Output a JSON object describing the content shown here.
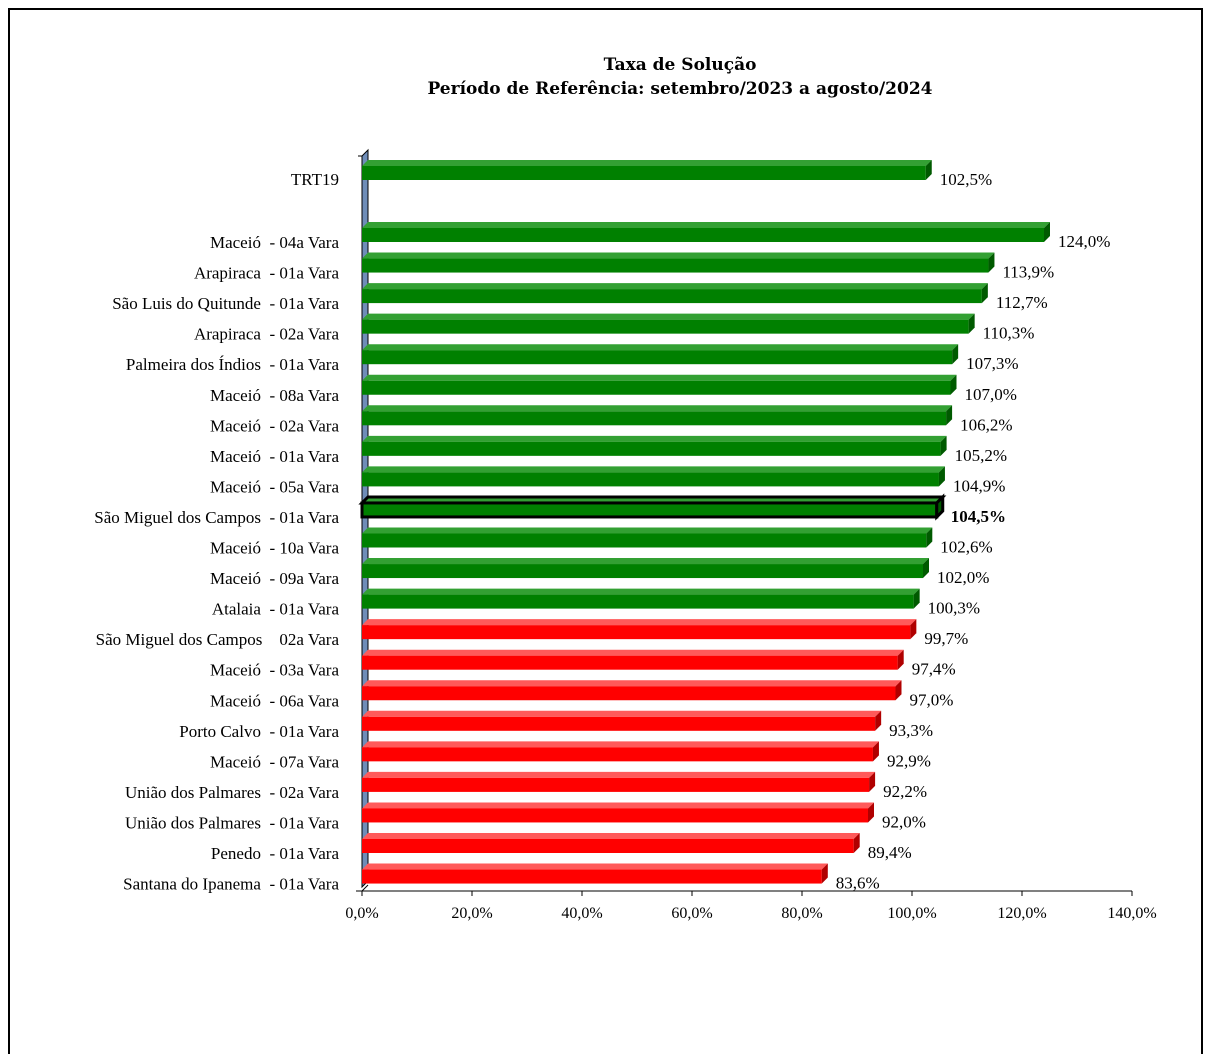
{
  "chart_data": {
    "type": "bar",
    "orientation": "horizontal",
    "title": "Taxa de Solução",
    "subtitle": "Período de Referência: setembro/2023 a agosto/2024",
    "xlim": [
      0,
      140
    ],
    "xticks": [
      "0,0%",
      "20,0%",
      "40,0%",
      "60,0%",
      "80,0%",
      "100,0%",
      "120,0%",
      "140,0%"
    ],
    "tick_values": [
      0,
      20,
      40,
      60,
      80,
      100,
      120,
      140
    ],
    "highlight": "São Miguel dos Campos  - 01a Vara",
    "colors": {
      "above": "#008000",
      "below": "#ff0000",
      "axis_wall": "#6f8db8"
    },
    "bars": [
      {
        "category": "TRT19",
        "value": 102.5,
        "label": "102,5%"
      },
      {
        "category": "Maceió  - 04a Vara",
        "value": 124.0,
        "label": "124,0%"
      },
      {
        "category": "Arapiraca  - 01a Vara",
        "value": 113.9,
        "label": "113,9%"
      },
      {
        "category": "São Luis do Quitunde  - 01a Vara",
        "value": 112.7,
        "label": "112,7%"
      },
      {
        "category": "Arapiraca  - 02a Vara",
        "value": 110.3,
        "label": "110,3%"
      },
      {
        "category": "Palmeira dos Índios  - 01a Vara",
        "value": 107.3,
        "label": "107,3%"
      },
      {
        "category": "Maceió  - 08a Vara",
        "value": 107.0,
        "label": "107,0%"
      },
      {
        "category": "Maceió  - 02a Vara",
        "value": 106.2,
        "label": "106,2%"
      },
      {
        "category": "Maceió  - 01a Vara",
        "value": 105.2,
        "label": "105,2%"
      },
      {
        "category": "Maceió  - 05a Vara",
        "value": 104.9,
        "label": "104,9%"
      },
      {
        "category": "São Miguel dos Campos  - 01a Vara",
        "value": 104.5,
        "label": "104,5%"
      },
      {
        "category": "Maceió  - 10a Vara",
        "value": 102.6,
        "label": "102,6%"
      },
      {
        "category": "Maceió  - 09a Vara",
        "value": 102.0,
        "label": "102,0%"
      },
      {
        "category": "Atalaia  - 01a Vara",
        "value": 100.3,
        "label": "100,3%"
      },
      {
        "category": "São Miguel dos Campos    02a Vara",
        "value": 99.7,
        "label": "99,7%"
      },
      {
        "category": "Maceió  - 03a Vara",
        "value": 97.4,
        "label": "97,4%"
      },
      {
        "category": "Maceió  - 06a Vara",
        "value": 97.0,
        "label": "97,0%"
      },
      {
        "category": "Porto Calvo  - 01a Vara",
        "value": 93.3,
        "label": "93,3%"
      },
      {
        "category": "Maceió  - 07a Vara",
        "value": 92.9,
        "label": "92,9%"
      },
      {
        "category": "União dos Palmares  - 02a Vara",
        "value": 92.2,
        "label": "92,2%"
      },
      {
        "category": "União dos Palmares  - 01a Vara",
        "value": 92.0,
        "label": "92,0%"
      },
      {
        "category": "Penedo  - 01a Vara",
        "value": 89.4,
        "label": "89,4%"
      },
      {
        "category": "Santana do Ipanema  - 01a Vara",
        "value": 83.6,
        "label": "83,6%"
      }
    ]
  }
}
